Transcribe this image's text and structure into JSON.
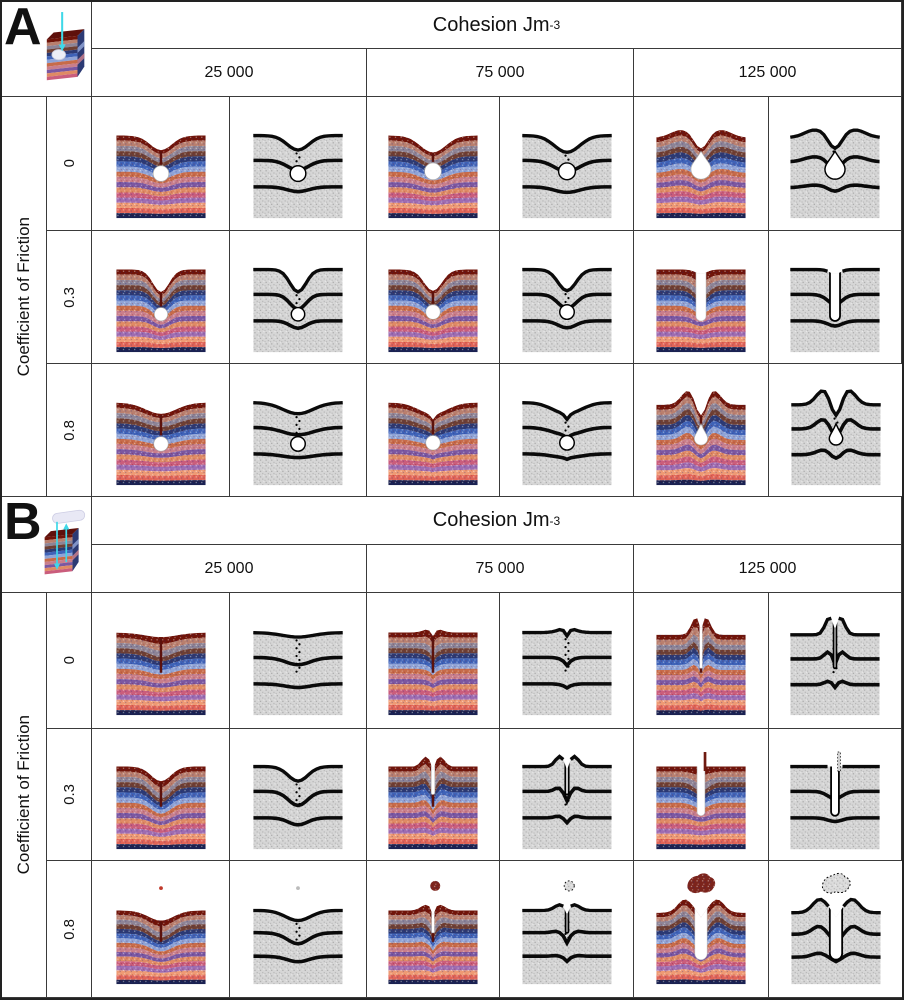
{
  "figure": {
    "panels": [
      {
        "label": "A",
        "icon": "chamber-collapse-icon",
        "header": {
          "title": "Cohesion Jm",
          "exp": "-3"
        },
        "columns": [
          "25 000",
          "75 000",
          "125 000"
        ],
        "row_axis_label": "Coefficient of Friction",
        "rows": [
          "0",
          "0.3",
          "0.8"
        ],
        "views": [
          "colored-particle-view",
          "marker-bed-view"
        ],
        "cells": [
          {
            "friction": "0",
            "cohesion": "25 000",
            "style": "funnel_chamber"
          },
          {
            "friction": "0",
            "cohesion": "75 000",
            "style": "funnel_wide"
          },
          {
            "friction": "0",
            "cohesion": "125 000",
            "style": "bulge_teardrop"
          },
          {
            "friction": "0.3",
            "cohesion": "25 000",
            "style": "vee_chamber"
          },
          {
            "friction": "0.3",
            "cohesion": "75 000",
            "style": "vee_chamber2"
          },
          {
            "friction": "0.3",
            "cohesion": "125 000",
            "style": "deep_slot"
          },
          {
            "friction": "0.8",
            "cohesion": "25 000",
            "style": "sag_chamber"
          },
          {
            "friction": "0.8",
            "cohesion": "75 000",
            "style": "sag_notch"
          },
          {
            "friction": "0.8",
            "cohesion": "125 000",
            "style": "twin_peaks"
          }
        ]
      },
      {
        "label": "B",
        "icon": "dike-eruption-icon",
        "header": {
          "title": "Cohesion Jm",
          "exp": "-3"
        },
        "columns": [
          "25 000",
          "75 000",
          "125 000"
        ],
        "row_axis_label": "Coefficient of Friction",
        "rows": [
          "0",
          "0.3",
          "0.8"
        ],
        "views": [
          "colored-particle-view",
          "marker-bed-view"
        ],
        "cells": [
          {
            "friction": "0",
            "cohesion": "25 000",
            "style": "flat_disturbed"
          },
          {
            "friction": "0",
            "cohesion": "75 000",
            "style": "summit_notch"
          },
          {
            "friction": "0",
            "cohesion": "125 000",
            "style": "peaks_fissure"
          },
          {
            "friction": "0.3",
            "cohesion": "25 000",
            "style": "vee_fissure"
          },
          {
            "friction": "0.3",
            "cohesion": "75 000",
            "style": "rims_fissure"
          },
          {
            "friction": "0.3",
            "cohesion": "125 000",
            "style": "slot_spire"
          },
          {
            "friction": "0.8",
            "cohesion": "25 000",
            "style": "sag_ejecta_dot"
          },
          {
            "friction": "0.8",
            "cohesion": "75 000",
            "style": "fissure_ejecta_small"
          },
          {
            "friction": "0.8",
            "cohesion": "125 000",
            "style": "conduit_ejecta_large"
          }
        ]
      }
    ]
  },
  "colors": {
    "accent_cyan": "#3fd8e8",
    "grid_line": "#3a3a3a",
    "gray_block": "#d6d6d6",
    "marker_black": "#0a0a0a",
    "capsule": "#e8e8f5",
    "fault_maroon": "#5c120c",
    "palette": [
      "#701409",
      "#b97f6e",
      "#8d8496",
      "#6e3f33",
      "#2c3a74",
      "#3f63b8",
      "#8fa3d6",
      "#c76b49",
      "#c97e8b",
      "#7b57a1",
      "#df8a64",
      "#ca5d7c",
      "#9e6cb1",
      "#ee9a74",
      "#e26557",
      "#1a2150"
    ]
  }
}
